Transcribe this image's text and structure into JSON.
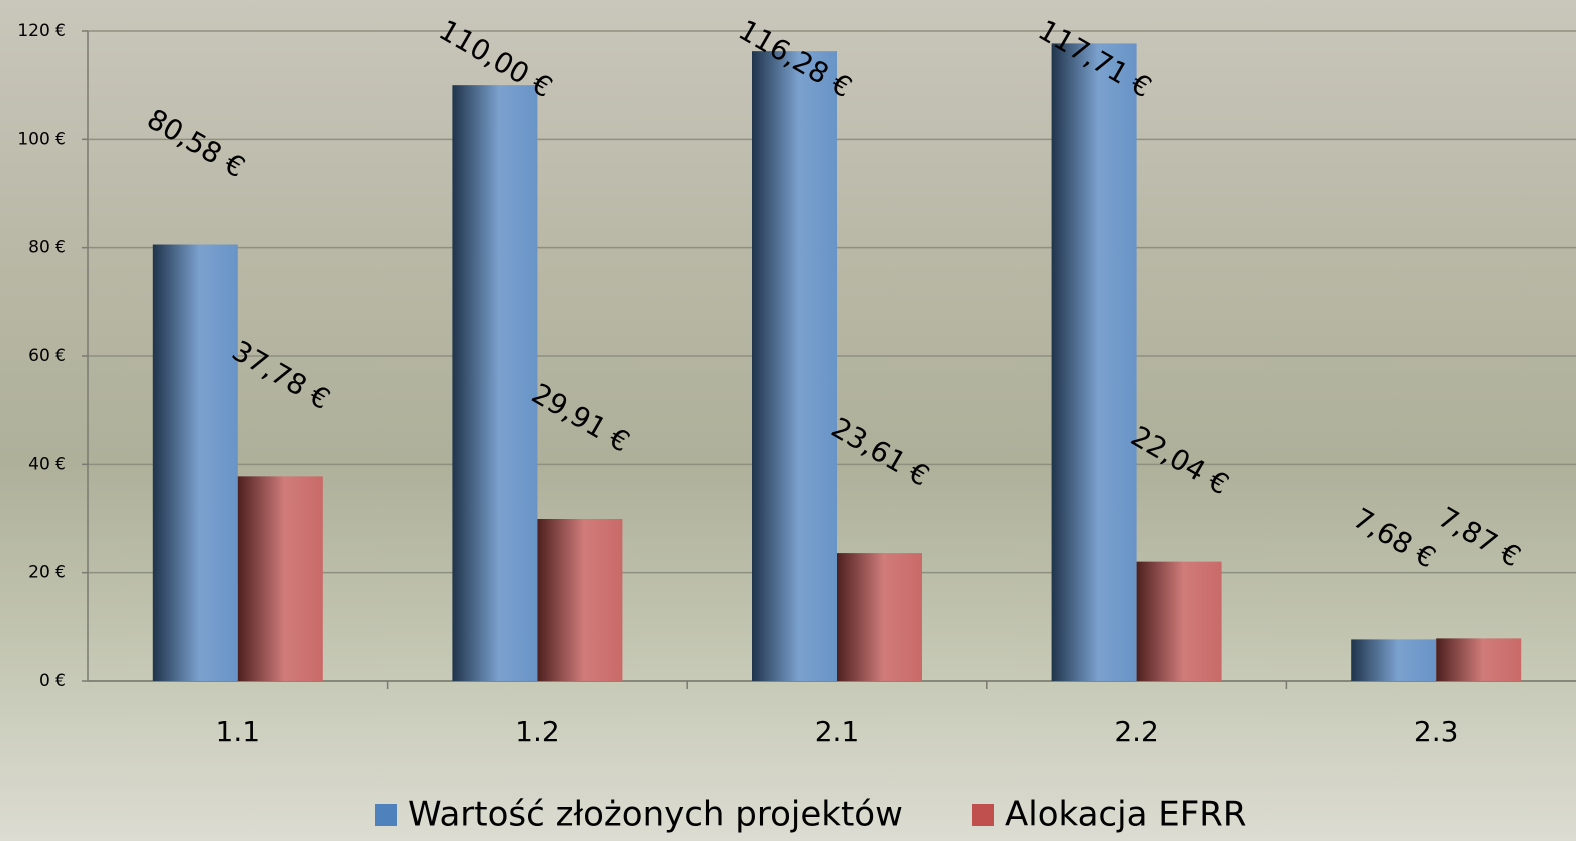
{
  "chart_data": {
    "type": "bar",
    "categories": [
      "1.1",
      "1.2",
      "2.1",
      "2.2",
      "2.3"
    ],
    "series": [
      {
        "name": "Wartość złożonych projektów",
        "color": "#4f81bd",
        "values": [
          80.58,
          110.0,
          116.28,
          117.71,
          7.68
        ],
        "value_labels": [
          "80,58 €",
          "110,00 €",
          "116,28 €",
          "117,71 €",
          "7,68 €"
        ]
      },
      {
        "name": "Alokacja EFRR",
        "color": "#c0504d",
        "values": [
          37.78,
          29.91,
          23.61,
          22.04,
          7.87
        ],
        "value_labels": [
          "37,78 €",
          "29,91 €",
          "23,61 €",
          "22,04 €",
          "7,87 €"
        ]
      }
    ],
    "ylim": [
      0,
      120
    ],
    "yticks": [
      {
        "value": 0,
        "label": "0 €"
      },
      {
        "value": 20,
        "label": "20 €"
      },
      {
        "value": 40,
        "label": "40 €"
      },
      {
        "value": 60,
        "label": "60 €"
      },
      {
        "value": 80,
        "label": "80 €"
      },
      {
        "value": 100,
        "label": "100 €"
      },
      {
        "value": 120,
        "label": "120 €"
      }
    ],
    "grid": true,
    "legend": "bottom"
  }
}
